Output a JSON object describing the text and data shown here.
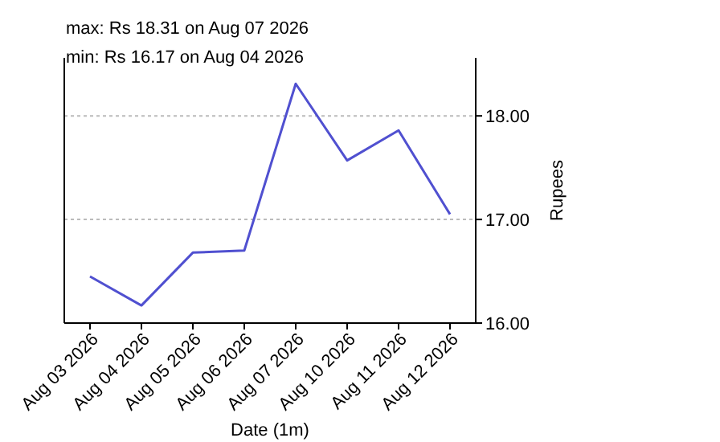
{
  "chart_data": {
    "type": "line",
    "xlabel": "Date (1m)",
    "ylabel": "Rupees",
    "annotations": [
      "max: Rs 18.31 on Aug 07 2026",
      "min: Rs 16.17 on Aug 04 2026"
    ],
    "categories": [
      "Aug 03 2026",
      "Aug 04 2026",
      "Aug 05 2026",
      "Aug 06 2026",
      "Aug 07 2026",
      "Aug 10 2026",
      "Aug 11 2026",
      "Aug 12 2026"
    ],
    "series": [
      {
        "color": "#5050d0",
        "values": [
          16.45,
          16.17,
          16.68,
          16.7,
          18.31,
          17.57,
          17.86,
          17.05
        ]
      }
    ],
    "ylim": [
      16,
      18.56
    ],
    "yticks": [
      {
        "value": 16,
        "label": "16.00"
      },
      {
        "value": 17,
        "label": "17.00"
      },
      {
        "value": 18,
        "label": "18.00"
      }
    ],
    "grid": "y",
    "marker": "none",
    "line_style": "solid"
  }
}
